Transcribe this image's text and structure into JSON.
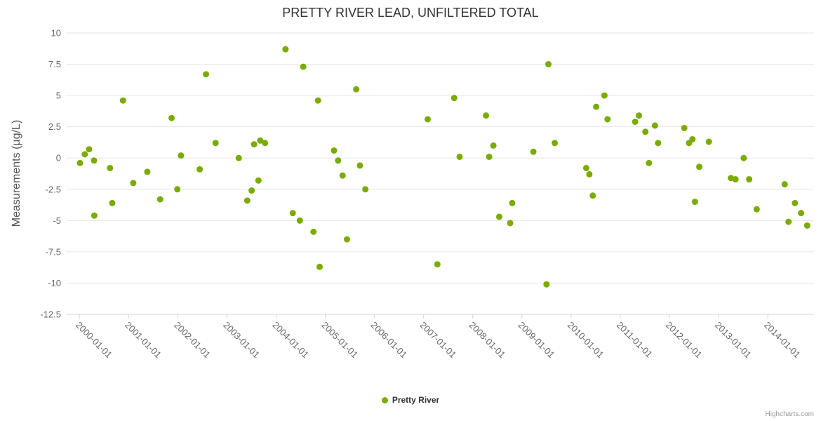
{
  "chart_data": {
    "type": "scatter",
    "title": "PRETTY RIVER LEAD, UNFILTERED TOTAL",
    "ylabel": "Measurements (µg/L)",
    "xlabel": "",
    "ylim": [
      -12.5,
      10
    ],
    "y_ticks": [
      10,
      7.5,
      5,
      2.5,
      0,
      -2.5,
      -5,
      -7.5,
      -10,
      -12.5
    ],
    "x_ticks": [
      "2000-01-01",
      "2001-01-01",
      "2002-01-01",
      "2003-01-01",
      "2004-01-01",
      "2005-01-01",
      "2006-01-01",
      "2007-01-01",
      "2008-01-01",
      "2009-01-01",
      "2010-01-01",
      "2011-01-01",
      "2012-01-01",
      "2013-01-01",
      "2014-01-01"
    ],
    "x_range_years": [
      1999.74,
      2014.94
    ],
    "grid": "horizontal",
    "legend_position": "bottom-center",
    "colors": {
      "grid": "#e6e6e6",
      "axis": "#ccd6eb",
      "tick_text": "#666666",
      "title_text": "#333333"
    },
    "series": [
      {
        "name": "Pretty River",
        "color": "#7aab00",
        "marker": "circle",
        "points": [
          [
            "2000-01-05",
            -0.4
          ],
          [
            "2000-02-10",
            0.3
          ],
          [
            "2000-03-12",
            0.7
          ],
          [
            "2000-04-18",
            -0.2
          ],
          [
            "2000-04-20",
            -4.6
          ],
          [
            "2000-08-15",
            -0.8
          ],
          [
            "2000-09-01",
            -3.6
          ],
          [
            "2000-11-20",
            4.6
          ],
          [
            "2001-02-05",
            -2.0
          ],
          [
            "2001-05-18",
            -1.1
          ],
          [
            "2001-08-22",
            -3.3
          ],
          [
            "2001-11-16",
            3.2
          ],
          [
            "2001-12-28",
            -2.5
          ],
          [
            "2002-01-25",
            0.2
          ],
          [
            "2002-06-12",
            -0.9
          ],
          [
            "2002-07-28",
            6.7
          ],
          [
            "2002-10-08",
            1.2
          ],
          [
            "2003-03-28",
            0.0
          ],
          [
            "2003-05-30",
            -3.4
          ],
          [
            "2003-07-02",
            -2.6
          ],
          [
            "2003-07-20",
            1.1
          ],
          [
            "2003-08-22",
            -1.8
          ],
          [
            "2003-09-05",
            1.4
          ],
          [
            "2003-10-10",
            1.2
          ],
          [
            "2004-03-10",
            8.7
          ],
          [
            "2004-05-03",
            -4.4
          ],
          [
            "2004-06-25",
            -5.0
          ],
          [
            "2004-07-20",
            7.3
          ],
          [
            "2004-10-05",
            -5.9
          ],
          [
            "2004-11-08",
            4.6
          ],
          [
            "2004-11-20",
            -8.7
          ],
          [
            "2005-03-05",
            0.6
          ],
          [
            "2005-04-05",
            -0.2
          ],
          [
            "2005-05-08",
            -1.4
          ],
          [
            "2005-06-10",
            -6.5
          ],
          [
            "2005-08-18",
            5.5
          ],
          [
            "2005-09-15",
            -0.6
          ],
          [
            "2005-10-25",
            -2.5
          ],
          [
            "2007-02-01",
            3.1
          ],
          [
            "2007-04-12",
            -8.5
          ],
          [
            "2007-08-15",
            4.8
          ],
          [
            "2007-09-25",
            0.1
          ],
          [
            "2008-04-08",
            3.4
          ],
          [
            "2008-05-01",
            0.1
          ],
          [
            "2008-06-02",
            1.0
          ],
          [
            "2008-07-15",
            -4.7
          ],
          [
            "2008-10-05",
            -5.2
          ],
          [
            "2008-10-20",
            -3.6
          ],
          [
            "2009-03-25",
            0.5
          ],
          [
            "2009-07-01",
            -10.1
          ],
          [
            "2009-07-15",
            7.5
          ],
          [
            "2009-09-01",
            1.2
          ],
          [
            "2010-04-22",
            -0.8
          ],
          [
            "2010-05-15",
            -1.3
          ],
          [
            "2010-06-10",
            -3.0
          ],
          [
            "2010-07-05",
            4.1
          ],
          [
            "2010-09-05",
            5.0
          ],
          [
            "2010-09-28",
            3.1
          ],
          [
            "2011-04-20",
            2.9
          ],
          [
            "2011-05-18",
            3.4
          ],
          [
            "2011-07-05",
            2.1
          ],
          [
            "2011-08-01",
            -0.4
          ],
          [
            "2011-09-15",
            2.6
          ],
          [
            "2011-10-08",
            1.2
          ],
          [
            "2012-04-20",
            2.4
          ],
          [
            "2012-05-25",
            1.2
          ],
          [
            "2012-06-20",
            1.5
          ],
          [
            "2012-07-08",
            -3.5
          ],
          [
            "2012-08-10",
            -0.7
          ],
          [
            "2012-10-20",
            1.3
          ],
          [
            "2013-04-01",
            -1.6
          ],
          [
            "2013-05-05",
            -1.7
          ],
          [
            "2013-07-05",
            0.0
          ],
          [
            "2013-08-15",
            -1.7
          ],
          [
            "2013-10-10",
            -4.1
          ],
          [
            "2014-05-05",
            -2.1
          ],
          [
            "2014-06-03",
            -5.1
          ],
          [
            "2014-07-20",
            -3.6
          ],
          [
            "2014-09-05",
            -4.4
          ],
          [
            "2014-10-20",
            -5.4
          ]
        ]
      }
    ]
  },
  "credits": {
    "label": "Highcharts.com"
  }
}
